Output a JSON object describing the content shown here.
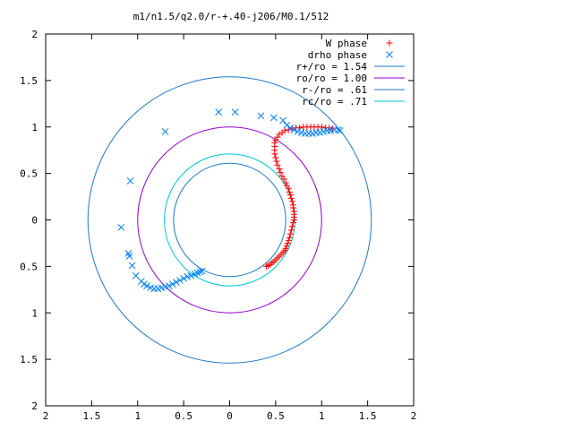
{
  "chart_data": {
    "type": "scatter",
    "title": "m1/n1.5/q2.0/r-+.40-j206/M0.1/512",
    "xlabel": "",
    "ylabel": "",
    "xlim": [
      -2,
      2
    ],
    "ylim": [
      -2,
      2
    ],
    "x_ticks": [
      -2,
      -1.5,
      -1,
      -0.5,
      0,
      0.5,
      1,
      1.5,
      2
    ],
    "y_ticks": [
      -2,
      -1.5,
      -1,
      -0.5,
      0,
      0.5,
      1,
      1.5,
      2
    ],
    "x_tick_labels": [
      "2",
      "1.5",
      "1",
      "0.5",
      "0",
      "0.5",
      "1",
      "1.5",
      "2"
    ],
    "y_tick_labels": [
      "2",
      "1.5",
      "1",
      "0.5",
      "0",
      "0.5",
      "1",
      "1.5",
      "2"
    ],
    "grid": false,
    "legend_position": "top-right",
    "series": [
      {
        "name": "W phase",
        "marker": "plus",
        "color": "#ff0000",
        "points": [
          [
            0.4,
            -0.5
          ],
          [
            0.42,
            -0.49
          ],
          [
            0.44,
            -0.48
          ],
          [
            0.46,
            -0.46
          ],
          [
            0.48,
            -0.45
          ],
          [
            0.5,
            -0.43
          ],
          [
            0.52,
            -0.41
          ],
          [
            0.54,
            -0.39
          ],
          [
            0.56,
            -0.37
          ],
          [
            0.58,
            -0.35
          ],
          [
            0.6,
            -0.33
          ],
          [
            0.61,
            -0.31
          ],
          [
            0.62,
            -0.28
          ],
          [
            0.63,
            -0.25
          ],
          [
            0.64,
            -0.22
          ],
          [
            0.65,
            -0.19
          ],
          [
            0.66,
            -0.15
          ],
          [
            0.67,
            -0.11
          ],
          [
            0.68,
            -0.07
          ],
          [
            0.69,
            -0.03
          ],
          [
            0.7,
            0.0
          ],
          [
            0.7,
            0.03
          ],
          [
            0.7,
            0.06
          ],
          [
            0.7,
            0.09
          ],
          [
            0.69,
            0.13
          ],
          [
            0.69,
            0.16
          ],
          [
            0.68,
            0.2
          ],
          [
            0.67,
            0.23
          ],
          [
            0.66,
            0.27
          ],
          [
            0.65,
            0.3
          ],
          [
            0.64,
            0.34
          ],
          [
            0.62,
            0.37
          ],
          [
            0.61,
            0.4
          ],
          [
            0.59,
            0.44
          ],
          [
            0.57,
            0.47
          ],
          [
            0.55,
            0.51
          ],
          [
            0.54,
            0.55
          ],
          [
            0.52,
            0.59
          ],
          [
            0.51,
            0.63
          ],
          [
            0.5,
            0.67
          ],
          [
            0.49,
            0.71
          ],
          [
            0.49,
            0.75
          ],
          [
            0.49,
            0.79
          ],
          [
            0.49,
            0.83
          ],
          [
            0.5,
            0.86
          ],
          [
            0.52,
            0.89
          ],
          [
            0.54,
            0.92
          ],
          [
            0.57,
            0.94
          ],
          [
            0.6,
            0.96
          ],
          [
            0.64,
            0.97
          ],
          [
            0.68,
            0.98
          ],
          [
            0.72,
            0.99
          ],
          [
            0.76,
            0.99
          ],
          [
            0.8,
            1.0
          ],
          [
            0.84,
            1.0
          ],
          [
            0.88,
            1.0
          ],
          [
            0.92,
            1.0
          ],
          [
            0.96,
            1.0
          ],
          [
            1.0,
            1.0
          ],
          [
            1.04,
            0.99
          ],
          [
            1.08,
            0.99
          ],
          [
            1.12,
            0.98
          ]
        ]
      },
      {
        "name": "drho phase",
        "marker": "cross",
        "color": "#0080ff",
        "points": [
          [
            -0.12,
            1.16
          ],
          [
            0.06,
            1.16
          ],
          [
            0.34,
            1.12
          ],
          [
            0.48,
            1.1
          ],
          [
            0.58,
            1.07
          ],
          [
            -0.7,
            0.95
          ],
          [
            0.62,
            1.02
          ],
          [
            0.66,
            0.99
          ],
          [
            0.7,
            0.97
          ],
          [
            0.74,
            0.95
          ],
          [
            0.78,
            0.94
          ],
          [
            0.82,
            0.93
          ],
          [
            0.86,
            0.93
          ],
          [
            0.9,
            0.93
          ],
          [
            0.94,
            0.94
          ],
          [
            0.98,
            0.94
          ],
          [
            1.02,
            0.95
          ],
          [
            1.06,
            0.96
          ],
          [
            1.1,
            0.96
          ],
          [
            1.14,
            0.97
          ],
          [
            1.18,
            0.97
          ],
          [
            1.2,
            0.96
          ],
          [
            -1.08,
            0.42
          ],
          [
            -1.18,
            -0.08
          ],
          [
            -1.1,
            -0.36
          ],
          [
            -1.09,
            -0.39
          ],
          [
            -1.06,
            -0.49
          ],
          [
            -1.02,
            -0.6
          ],
          [
            -0.96,
            -0.66
          ],
          [
            -0.93,
            -0.69
          ],
          [
            -0.9,
            -0.71
          ],
          [
            -0.86,
            -0.73
          ],
          [
            -0.82,
            -0.74
          ],
          [
            -0.78,
            -0.74
          ],
          [
            -0.74,
            -0.73
          ],
          [
            -0.7,
            -0.72
          ],
          [
            -0.66,
            -0.71
          ],
          [
            -0.62,
            -0.69
          ],
          [
            -0.58,
            -0.67
          ],
          [
            -0.54,
            -0.65
          ],
          [
            -0.5,
            -0.63
          ],
          [
            -0.46,
            -0.61
          ],
          [
            -0.42,
            -0.6
          ],
          [
            -0.38,
            -0.58
          ],
          [
            -0.35,
            -0.57
          ],
          [
            -0.32,
            -0.56
          ],
          [
            -0.3,
            -0.55
          ]
        ]
      }
    ],
    "circles": [
      {
        "name": "r+/ro = 1.54",
        "radius": 1.54,
        "color": "#1f78c8"
      },
      {
        "name": "ro/ro = 1.00",
        "radius": 1.0,
        "color": "#9400d3"
      },
      {
        "name": "r-/ro = .61",
        "radius": 0.61,
        "color": "#1f78c8"
      },
      {
        "name": "rc/ro = .71",
        "radius": 0.71,
        "color": "#00c8d0"
      }
    ]
  }
}
